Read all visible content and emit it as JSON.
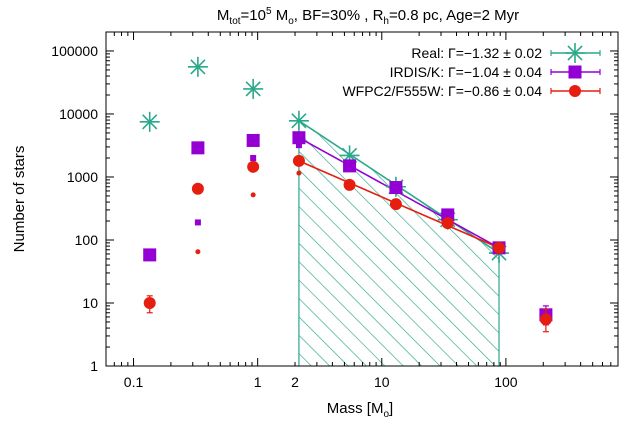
{
  "chart_data": {
    "type": "scatter",
    "title": "M_tot=10^5 M_o, BF=30% , R_h=0.8 pc, Age=2 Myr",
    "title_parts": {
      "p1": "M",
      "p1_sub": "tot",
      "p2": "=10",
      "p2_sup": "5",
      "p3": " M",
      "p3_sub": "o",
      "p4": ", BF=30% , R",
      "p4_sub": "h",
      "p5": "=0.8 pc, Age=2 Myr"
    },
    "xlabel": "Mass [M_o]",
    "xlabel_parts": {
      "main": "Mass [M",
      "sub": "o",
      "end": "]"
    },
    "ylabel": "Number of stars",
    "x_scale": "log",
    "y_scale": "log",
    "xlim": [
      0.06,
      800
    ],
    "ylim": [
      1,
      200000
    ],
    "x_tick_labels": [
      {
        "value": 0.1,
        "label": "0.1"
      },
      {
        "value": 1,
        "label": "1"
      },
      {
        "value": 2,
        "label": "2"
      },
      {
        "value": 10,
        "label": "10"
      },
      {
        "value": 100,
        "label": "100"
      }
    ],
    "y_tick_labels": [
      {
        "value": 1,
        "label": "1"
      },
      {
        "value": 10,
        "label": "10"
      },
      {
        "value": 100,
        "label": "100"
      },
      {
        "value": 1000,
        "label": "1000"
      },
      {
        "value": 10000,
        "label": "10000"
      },
      {
        "value": 100000,
        "label": "100000"
      }
    ],
    "grid": false,
    "legend_position": "top-right",
    "series": [
      {
        "name": "Real: Γ=−1.32 ± 0.02",
        "legend_text": "Real: Γ=−1.32 ± 0.02",
        "marker": "asterisk",
        "color": "#2aa88a",
        "points": [
          {
            "x": 0.135,
            "y": 7500
          },
          {
            "x": 0.33,
            "y": 56000
          },
          {
            "x": 0.92,
            "y": 25000
          },
          {
            "x": 2.15,
            "y": 7800
          },
          {
            "x": 5.5,
            "y": 2200
          },
          {
            "x": 13,
            "y": 700
          },
          {
            "x": 34,
            "y": 210
          },
          {
            "x": 88,
            "y": 62
          }
        ],
        "fit": {
          "x": [
            2.15,
            88
          ],
          "y": [
            7800,
            62
          ]
        }
      },
      {
        "name": "IRDIS/K: Γ=−1.04 ± 0.04",
        "legend_text": "IRDIS/K: Γ=−1.04 ± 0.04",
        "marker": "square",
        "color": "#9400d3",
        "points": [
          {
            "x": 0.135,
            "y": 58
          },
          {
            "x": 0.33,
            "y": 2900
          },
          {
            "x": 0.92,
            "y": 3800
          },
          {
            "x": 2.15,
            "y": 4200
          },
          {
            "x": 5.5,
            "y": 1500
          },
          {
            "x": 13,
            "y": 680
          },
          {
            "x": 34,
            "y": 250
          },
          {
            "x": 88,
            "y": 75
          },
          {
            "x": 210,
            "y": 6.5,
            "err_low": 4.5,
            "err_high": 9
          }
        ],
        "small_points": [
          {
            "x": 0.33,
            "y": 190
          },
          {
            "x": 0.92,
            "y": 2000
          },
          {
            "x": 2.15,
            "y": 3200
          }
        ],
        "fit": {
          "x": [
            2.15,
            88
          ],
          "y": [
            4200,
            75
          ]
        }
      },
      {
        "name": "WFPC2/F555W: Γ=−0.86 ± 0.04",
        "legend_text": "WFPC2/F555W: Γ=−0.86 ± 0.04",
        "marker": "circle",
        "color": "#e51e10",
        "points": [
          {
            "x": 0.135,
            "y": 10,
            "err_low": 7,
            "err_high": 13
          },
          {
            "x": 0.33,
            "y": 650
          },
          {
            "x": 0.92,
            "y": 1450
          },
          {
            "x": 2.15,
            "y": 1800
          },
          {
            "x": 5.5,
            "y": 750
          },
          {
            "x": 13,
            "y": 370
          },
          {
            "x": 34,
            "y": 185
          },
          {
            "x": 88,
            "y": 75
          },
          {
            "x": 210,
            "y": 5.5,
            "err_low": 3.5,
            "err_high": 8
          }
        ],
        "small_points": [
          {
            "x": 0.33,
            "y": 65
          },
          {
            "x": 0.92,
            "y": 520
          },
          {
            "x": 2.15,
            "y": 1150
          }
        ],
        "fit": {
          "x": [
            2.15,
            88
          ],
          "y": [
            1800,
            75
          ]
        }
      }
    ],
    "shaded_region": {
      "x": [
        2.15,
        88
      ],
      "y_bottom": 1,
      "pattern": "diagonal-hatch",
      "color": "#2aa88a"
    }
  }
}
